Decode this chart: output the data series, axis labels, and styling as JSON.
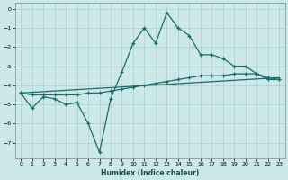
{
  "xlabel": "Humidex (Indice chaleur)",
  "ylabel": "",
  "xlim_min": -0.5,
  "xlim_max": 23.5,
  "ylim_min": -7.8,
  "ylim_max": 0.3,
  "xticks": [
    0,
    1,
    2,
    3,
    4,
    5,
    6,
    7,
    8,
    9,
    10,
    11,
    12,
    13,
    14,
    15,
    16,
    17,
    18,
    19,
    20,
    21,
    22,
    23
  ],
  "yticks": [
    0,
    -1,
    -2,
    -3,
    -4,
    -5,
    -6,
    -7
  ],
  "bg_color": "#cce8e8",
  "grid_color": "#aacfcf",
  "line_color": "#1a6b6b",
  "line1_x": [
    0,
    1,
    2,
    3,
    4,
    5,
    6,
    7,
    8,
    9,
    10,
    11,
    12,
    13,
    14,
    15,
    16,
    17,
    18,
    19,
    20,
    21,
    22,
    23
  ],
  "line1_y": [
    -4.4,
    -5.2,
    -4.6,
    -4.7,
    -5.0,
    -4.9,
    -6.0,
    -7.5,
    -4.7,
    -3.3,
    -1.8,
    -1.0,
    -1.8,
    -0.2,
    -1.0,
    -1.4,
    -2.4,
    -2.4,
    -2.6,
    -3.0,
    -3.0,
    -3.4,
    -3.7,
    -3.7
  ],
  "line2_x": [
    0,
    1,
    2,
    3,
    4,
    5,
    6,
    7,
    8,
    9,
    10,
    11,
    12,
    13,
    14,
    15,
    16,
    17,
    18,
    19,
    20,
    21,
    22,
    23
  ],
  "line2_y": [
    -4.4,
    -4.5,
    -4.5,
    -4.5,
    -4.5,
    -4.5,
    -4.4,
    -4.4,
    -4.3,
    -4.2,
    -4.1,
    -4.0,
    -3.9,
    -3.8,
    -3.7,
    -3.6,
    -3.5,
    -3.5,
    -3.5,
    -3.4,
    -3.4,
    -3.4,
    -3.6,
    -3.7
  ],
  "line3_x": [
    0,
    23
  ],
  "line3_y": [
    -4.4,
    -3.6
  ],
  "figsize": [
    3.2,
    2.0
  ],
  "dpi": 100
}
